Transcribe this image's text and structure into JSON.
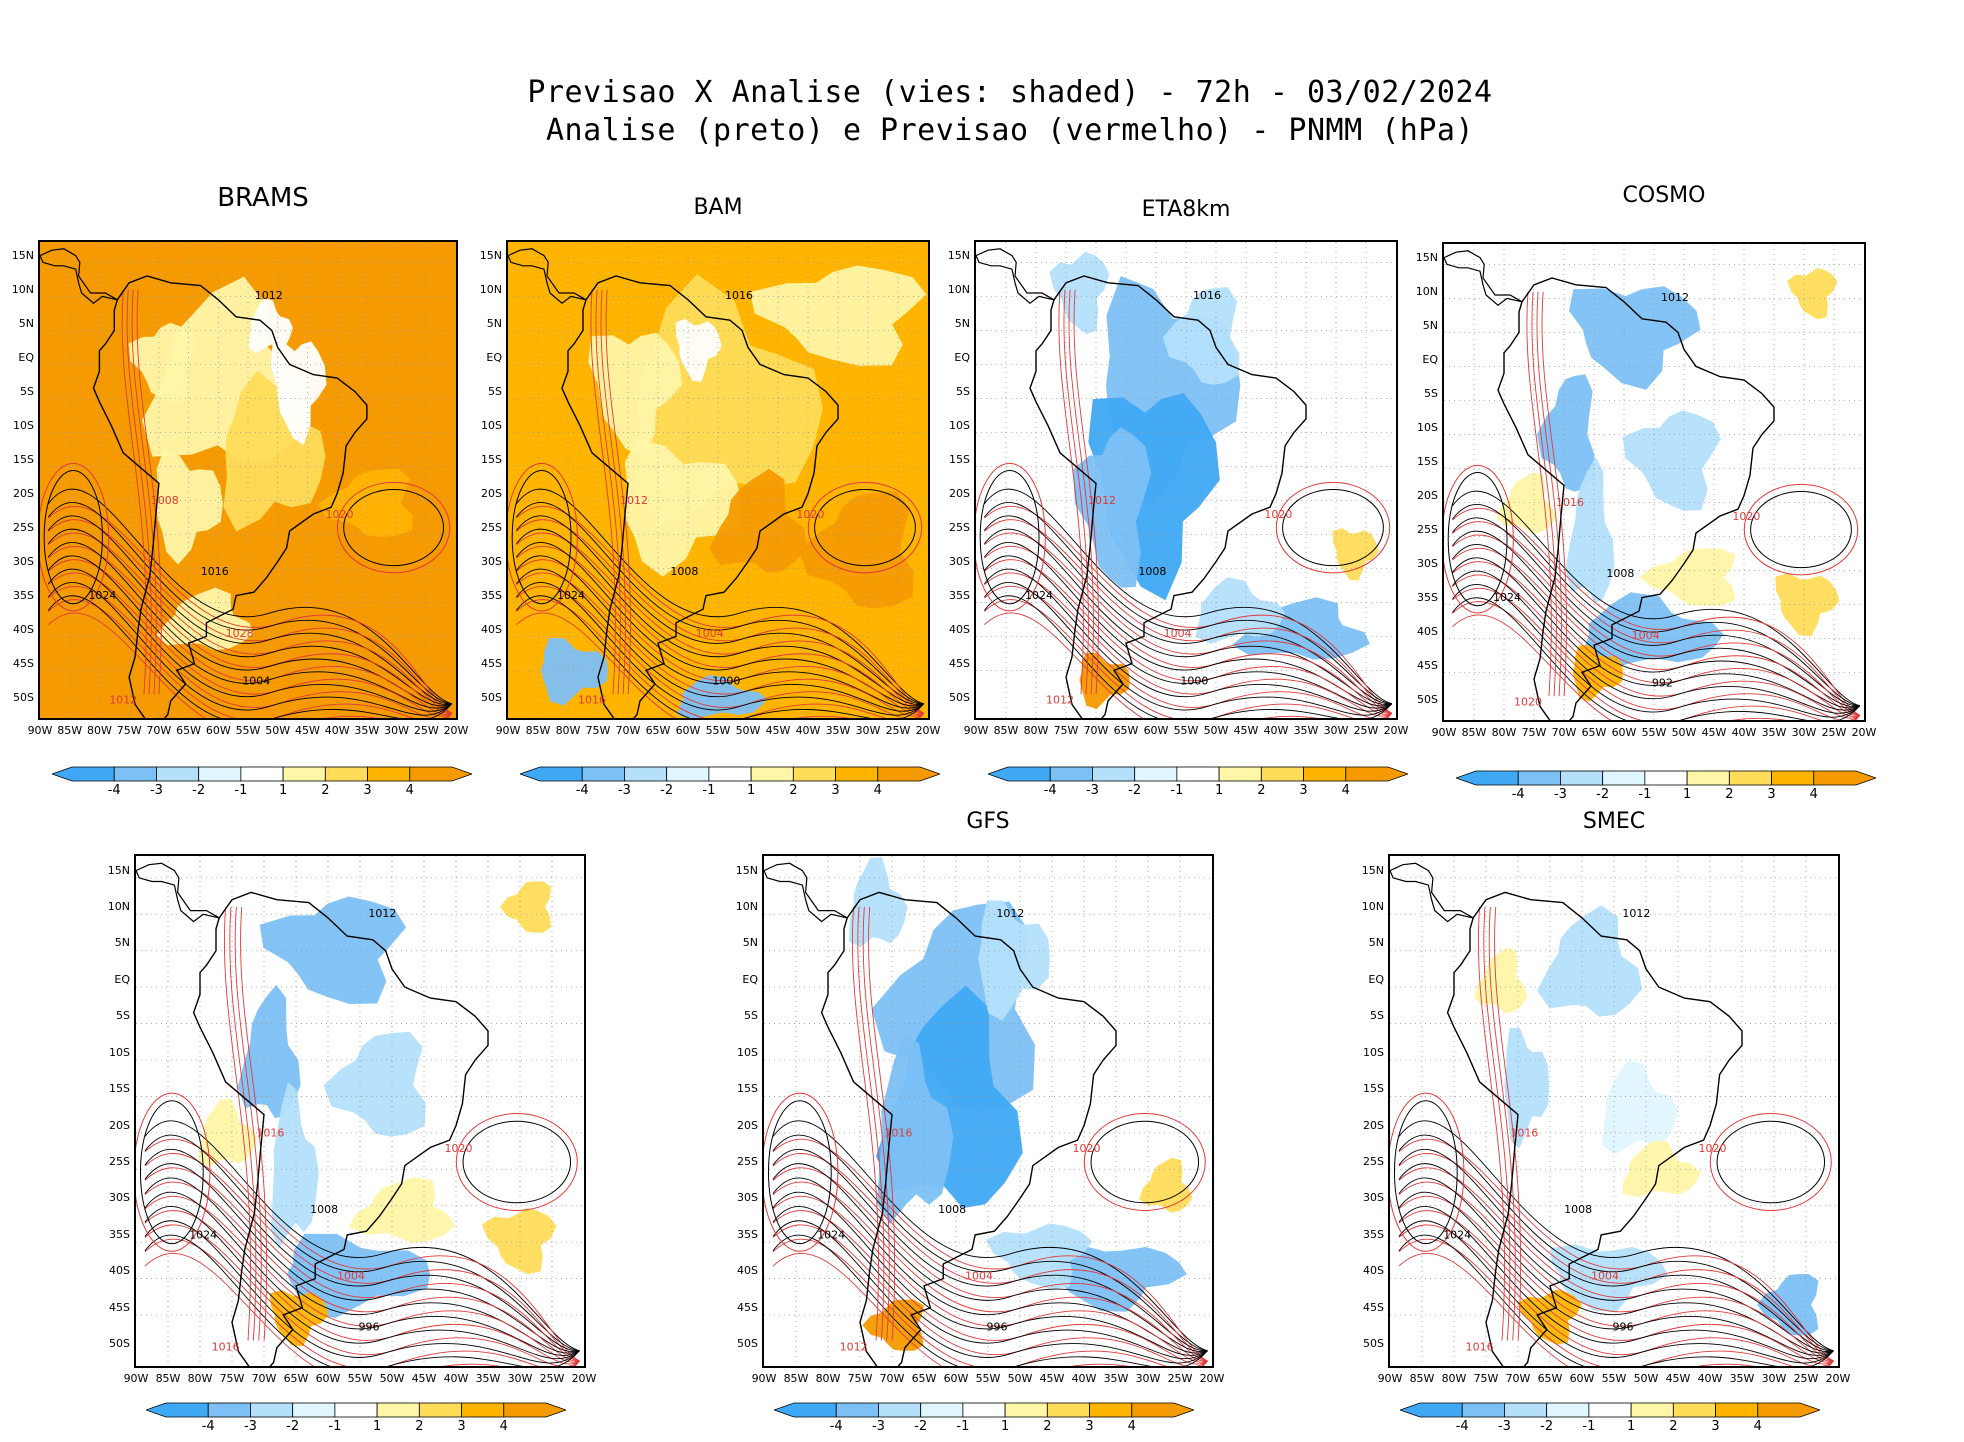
{
  "figure": {
    "title_line1": "Previsao X Analise (vies: shaded) - 72h - 03/02/2024",
    "title_line2": "Analise (preto) e Previsao (vermelho) - PNMM (hPa)"
  },
  "axes": {
    "lat_labels": [
      "15N",
      "10N",
      "5N",
      "EQ",
      "5S",
      "10S",
      "15S",
      "20S",
      "25S",
      "30S",
      "35S",
      "40S",
      "45S",
      "50S"
    ],
    "lon_labels": [
      "90W",
      "85W",
      "80W",
      "75W",
      "70W",
      "65W",
      "60W",
      "55W",
      "50W",
      "45W",
      "40W",
      "35W",
      "30W",
      "25W",
      "20W"
    ]
  },
  "colorbar": {
    "labels": [
      "-4",
      "-3",
      "-2",
      "-1",
      "1",
      "2",
      "3",
      "4"
    ],
    "colors": [
      "#3fa9f5",
      "#7dc0f5",
      "#b4e0fb",
      "#dff6ff",
      "#ffffff",
      "#fff6a8",
      "#ffdc5a",
      "#ffb400",
      "#f59a00"
    ]
  },
  "contour_colors": {
    "analysis": "#000000",
    "forecast": "#e03a3a"
  },
  "panels": [
    {
      "model": "BRAMS",
      "bias": "positive-strong",
      "labels": [
        "1012",
        "1008",
        "1016",
        "1020",
        "1024",
        "1028",
        "1004",
        "1012"
      ]
    },
    {
      "model": "BAM",
      "bias": "positive",
      "labels": [
        "1016",
        "1012",
        "1008",
        "1020",
        "1024",
        "1004",
        "1000",
        "1016"
      ]
    },
    {
      "model": "ETA8km",
      "bias": "negative",
      "labels": [
        "1016",
        "1012",
        "1008",
        "1020",
        "1024",
        "1004",
        "1000",
        "1012"
      ]
    },
    {
      "model": "COSMO",
      "bias": "mixed",
      "labels": [
        "1012",
        "1016",
        "1008",
        "1020",
        "1024",
        "1004",
        "992",
        "1020"
      ]
    },
    {
      "model": "",
      "bias": "mixed",
      "labels": [
        "1012",
        "1016",
        "1008",
        "1020",
        "1024",
        "1004",
        "996",
        "1016"
      ]
    },
    {
      "model": "GFS",
      "bias": "negative",
      "labels": [
        "1012",
        "1016",
        "1008",
        "1020",
        "1024",
        "1004",
        "996",
        "1012"
      ]
    },
    {
      "model": "SMEC",
      "bias": "mixed-light",
      "labels": [
        "1012",
        "1016",
        "1008",
        "1020",
        "1024",
        "1004",
        "996",
        "1016"
      ]
    }
  ]
}
